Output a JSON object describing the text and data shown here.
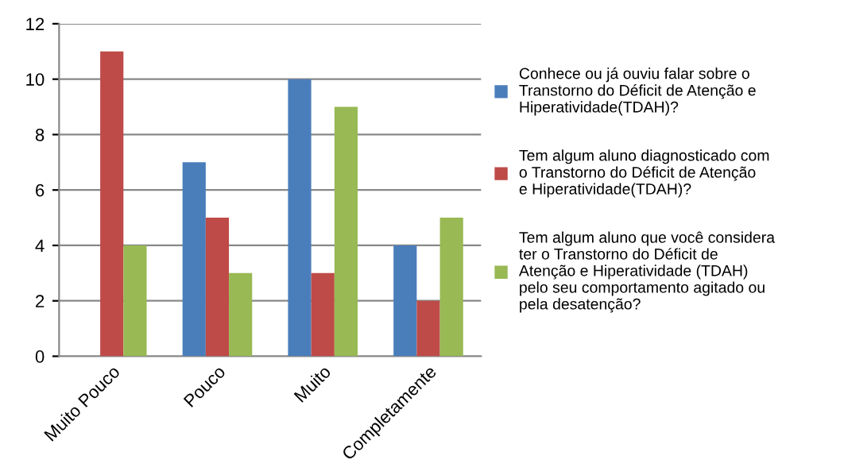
{
  "chart_data": {
    "type": "bar",
    "categories": [
      "Muito Pouco",
      "Pouco",
      "Muito",
      "Completamente"
    ],
    "series": [
      {
        "name": "Conhece ou já ouviu falar sobre o Transtorno do Déficit de Atenção e Hiperatividade(TDAH)?",
        "color": "#4a7ebb",
        "values": [
          0,
          7,
          10,
          4
        ]
      },
      {
        "name": "Tem algum aluno diagnosticado com o Transtorno do Déficit de Atenção e Hiperatividade(TDAH)?",
        "color": "#be4b48",
        "values": [
          11,
          5,
          3,
          2
        ]
      },
      {
        "name": "Tem algum aluno que você considera ter o Transtorno do Déficit de Atenção e Hiperatividade (TDAH) pelo seu comportamento agitado ou pela desatenção?",
        "color": "#98b954",
        "values": [
          4,
          3,
          9,
          5
        ]
      }
    ],
    "ylim": [
      0,
      12
    ],
    "yticks": [
      0,
      2,
      4,
      6,
      8,
      10,
      12
    ],
    "grid": "y",
    "legend": "right"
  }
}
